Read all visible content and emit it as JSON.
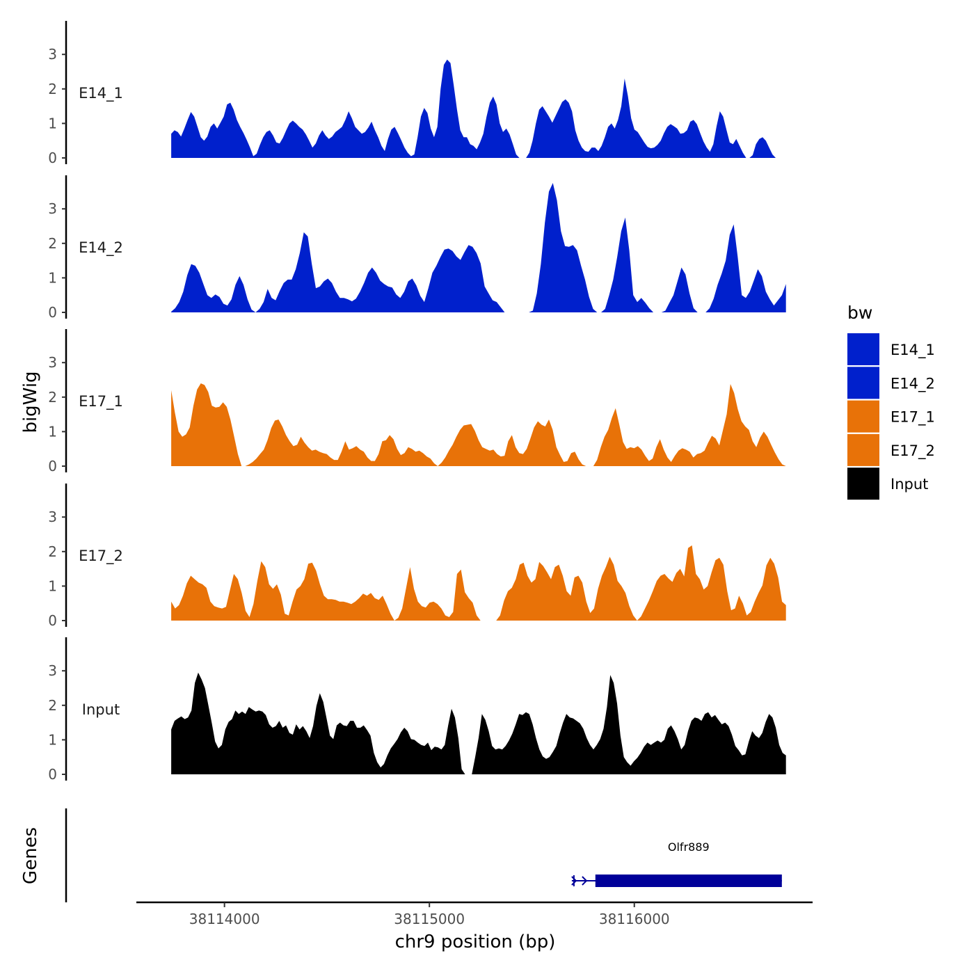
{
  "chart_data": {
    "type": "area",
    "title": "",
    "xlabel": "chr9 position (bp)",
    "ylabel": "bigWig",
    "genes_label": "Genes",
    "xlim": [
      38113570,
      38116870
    ],
    "ylim": [
      0,
      4
    ],
    "x_ticks": [
      38114000,
      38115000,
      38116000
    ],
    "x_tick_labels": [
      "38114000",
      "38115000",
      "38116000"
    ],
    "y_ticks": [
      0,
      1,
      2,
      3
    ],
    "y_tick_labels": [
      "0",
      "1",
      "2",
      "3"
    ],
    "legend": {
      "title": "bw",
      "position": "right",
      "entries": [
        {
          "label": "E14_1",
          "color": "#0020CC"
        },
        {
          "label": "E14_2",
          "color": "#0020CC"
        },
        {
          "label": "E17_1",
          "color": "#E87208"
        },
        {
          "label": "E17_2",
          "color": "#E87208"
        },
        {
          "label": "Input",
          "color": "#000000"
        }
      ]
    },
    "series": [
      {
        "name": "E14_1",
        "color": "#0020CC",
        "x_start": 38113740,
        "x_end": 38116690,
        "step": 25,
        "values": [
          0.7,
          0.8,
          0.75,
          0.62,
          0.85,
          1.1,
          1.33,
          1.2,
          0.9,
          0.6,
          0.5,
          0.62,
          0.9,
          1.0,
          0.85,
          1.02,
          1.2,
          1.55,
          1.6,
          1.4,
          1.1,
          0.9,
          0.72,
          0.52,
          0.3,
          0.05,
          0.12,
          0.38,
          0.6,
          0.75,
          0.8,
          0.65,
          0.45,
          0.42,
          0.58,
          0.8,
          1.0,
          1.08,
          1.0,
          0.9,
          0.82,
          0.68,
          0.5,
          0.3,
          0.42,
          0.65,
          0.8,
          0.65,
          0.55,
          0.62,
          0.75,
          0.82,
          0.9,
          1.1,
          1.35,
          1.15,
          0.9,
          0.8,
          0.7,
          0.75,
          0.88,
          1.05,
          0.8,
          0.6,
          0.35,
          0.2,
          0.55,
          0.82,
          0.9,
          0.72,
          0.52,
          0.3,
          0.15,
          0.05,
          0.1,
          0.6,
          1.2,
          1.45,
          1.3,
          0.85,
          0.6,
          0.9,
          2.0,
          2.7,
          2.85,
          2.75,
          2.1,
          1.4,
          0.8,
          0.6,
          0.6,
          0.4,
          0.35,
          0.25,
          0.45,
          0.7,
          1.2,
          1.6,
          1.78,
          1.55,
          1.0,
          0.75,
          0.85,
          0.68,
          0.4,
          0.1,
          0.0,
          0.0,
          0.0,
          0.15,
          0.5,
          1.0,
          1.4,
          1.5,
          1.35,
          1.2,
          1.02,
          1.22,
          1.42,
          1.62,
          1.7,
          1.6,
          1.35,
          0.8,
          0.5,
          0.3,
          0.2,
          0.18,
          0.3,
          0.3,
          0.2,
          0.35,
          0.6,
          0.9,
          1.0,
          0.85,
          1.1,
          1.5,
          2.3,
          1.8,
          1.15,
          0.82,
          0.75,
          0.6,
          0.45,
          0.32,
          0.28,
          0.3,
          0.38,
          0.5,
          0.72,
          0.9,
          0.98,
          0.92,
          0.85,
          0.7,
          0.72,
          0.8,
          1.05,
          1.1,
          0.98,
          0.72,
          0.48,
          0.3,
          0.18,
          0.4,
          0.92,
          1.35,
          1.2,
          0.82,
          0.45,
          0.4,
          0.55,
          0.35,
          0.15,
          0.0,
          0.0,
          0.08,
          0.4,
          0.55,
          0.6,
          0.5,
          0.3,
          0.1,
          0.0
        ]
      },
      {
        "name": "E14_2",
        "color": "#0020CC",
        "x_start": 38113740,
        "x_end": 38116740,
        "step": 25,
        "values": [
          0.02,
          0.12,
          0.3,
          0.6,
          1.08,
          1.4,
          1.35,
          1.15,
          0.82,
          0.5,
          0.42,
          0.52,
          0.45,
          0.25,
          0.2,
          0.38,
          0.8,
          1.05,
          0.8,
          0.38,
          0.08,
          0.0,
          0.1,
          0.3,
          0.68,
          0.42,
          0.35,
          0.62,
          0.85,
          0.95,
          0.95,
          1.25,
          1.72,
          2.32,
          2.2,
          1.4,
          0.7,
          0.75,
          0.9,
          0.98,
          0.85,
          0.6,
          0.42,
          0.42,
          0.38,
          0.32,
          0.4,
          0.6,
          0.85,
          1.15,
          1.3,
          1.15,
          0.92,
          0.82,
          0.75,
          0.72,
          0.52,
          0.42,
          0.6,
          0.9,
          0.98,
          0.78,
          0.48,
          0.3,
          0.7,
          1.15,
          1.35,
          1.6,
          1.82,
          1.85,
          1.78,
          1.62,
          1.52,
          1.75,
          1.95,
          1.9,
          1.72,
          1.42,
          0.75,
          0.55,
          0.35,
          0.3,
          0.15,
          0.0,
          0.0,
          0.0,
          0.0,
          0.0,
          0.0,
          0.0,
          0.05,
          0.55,
          1.4,
          2.6,
          3.5,
          3.75,
          3.25,
          2.35,
          1.92,
          1.9,
          1.95,
          1.8,
          1.35,
          0.95,
          0.45,
          0.1,
          0.0,
          0.0,
          0.1,
          0.5,
          0.95,
          1.6,
          2.35,
          2.75,
          1.8,
          0.5,
          0.3,
          0.42,
          0.28,
          0.12,
          0.0,
          0.0,
          0.0,
          0.05,
          0.28,
          0.5,
          0.9,
          1.3,
          1.1,
          0.55,
          0.12,
          0.0,
          0.0,
          0.0,
          0.12,
          0.4,
          0.8,
          1.12,
          1.5,
          2.25,
          2.55,
          1.6,
          0.5,
          0.42,
          0.6,
          0.92,
          1.25,
          1.05,
          0.6,
          0.38,
          0.2,
          0.35,
          0.5,
          0.82
        ]
      },
      {
        "name": "E17_1",
        "color": "#E87208",
        "x_start": 38113740,
        "x_end": 38116740,
        "step": 25,
        "values": [
          2.2,
          1.55,
          1.0,
          0.85,
          0.92,
          1.12,
          1.75,
          2.22,
          2.4,
          2.35,
          2.15,
          1.75,
          1.7,
          1.72,
          1.85,
          1.72,
          1.35,
          0.85,
          0.35,
          0.0,
          0.0,
          0.05,
          0.12,
          0.22,
          0.35,
          0.48,
          0.75,
          1.1,
          1.32,
          1.35,
          1.15,
          0.9,
          0.72,
          0.58,
          0.62,
          0.85,
          0.68,
          0.55,
          0.45,
          0.48,
          0.42,
          0.38,
          0.35,
          0.25,
          0.18,
          0.18,
          0.42,
          0.72,
          0.48,
          0.52,
          0.58,
          0.48,
          0.42,
          0.25,
          0.15,
          0.15,
          0.35,
          0.72,
          0.75,
          0.9,
          0.78,
          0.5,
          0.32,
          0.38,
          0.55,
          0.5,
          0.42,
          0.45,
          0.38,
          0.28,
          0.22,
          0.08,
          0.0,
          0.1,
          0.25,
          0.45,
          0.62,
          0.85,
          1.05,
          1.18,
          1.2,
          1.22,
          1.02,
          0.75,
          0.55,
          0.5,
          0.45,
          0.48,
          0.35,
          0.28,
          0.3,
          0.72,
          0.9,
          0.55,
          0.38,
          0.35,
          0.5,
          0.8,
          1.12,
          1.3,
          1.2,
          1.15,
          1.35,
          1.05,
          0.55,
          0.32,
          0.12,
          0.15,
          0.38,
          0.42,
          0.2,
          0.05,
          0.0,
          0.0,
          0.0,
          0.18,
          0.55,
          0.85,
          1.05,
          1.4,
          1.68,
          1.2,
          0.7,
          0.5,
          0.55,
          0.52,
          0.58,
          0.48,
          0.3,
          0.15,
          0.22,
          0.55,
          0.78,
          0.48,
          0.25,
          0.12,
          0.3,
          0.45,
          0.52,
          0.48,
          0.42,
          0.25,
          0.35,
          0.38,
          0.45,
          0.68,
          0.88,
          0.8,
          0.6,
          1.05,
          1.5,
          2.38,
          2.12,
          1.65,
          1.3,
          1.15,
          1.05,
          0.72,
          0.55,
          0.82,
          1.0,
          0.85,
          0.62,
          0.4,
          0.2,
          0.05,
          0.0
        ]
      },
      {
        "name": "E17_2",
        "color": "#E87208",
        "x_start": 38113740,
        "x_end": 38116740,
        "step": 25,
        "values": [
          0.55,
          0.35,
          0.45,
          0.72,
          1.08,
          1.3,
          1.2,
          1.1,
          1.05,
          0.95,
          0.55,
          0.42,
          0.38,
          0.35,
          0.4,
          0.88,
          1.35,
          1.2,
          0.8,
          0.28,
          0.1,
          0.48,
          1.15,
          1.72,
          1.55,
          1.05,
          0.92,
          1.05,
          0.75,
          0.2,
          0.15,
          0.55,
          0.9,
          1.0,
          1.2,
          1.65,
          1.68,
          1.45,
          1.05,
          0.72,
          0.62,
          0.62,
          0.6,
          0.55,
          0.55,
          0.52,
          0.48,
          0.55,
          0.65,
          0.78,
          0.72,
          0.8,
          0.65,
          0.6,
          0.72,
          0.48,
          0.2,
          0.0,
          0.08,
          0.35,
          0.95,
          1.55,
          0.92,
          0.55,
          0.42,
          0.38,
          0.52,
          0.55,
          0.48,
          0.35,
          0.15,
          0.1,
          0.25,
          1.35,
          1.48,
          0.82,
          0.65,
          0.52,
          0.15,
          0.0,
          0.0,
          0.0,
          0.0,
          0.0,
          0.15,
          0.58,
          0.85,
          0.95,
          1.2,
          1.62,
          1.68,
          1.3,
          1.1,
          1.2,
          1.7,
          1.58,
          1.4,
          1.2,
          1.55,
          1.62,
          1.3,
          0.85,
          0.72,
          1.25,
          1.3,
          1.1,
          0.55,
          0.22,
          0.35,
          0.92,
          1.3,
          1.55,
          1.85,
          1.62,
          1.15,
          1.0,
          0.8,
          0.42,
          0.15,
          0.0,
          0.12,
          0.35,
          0.58,
          0.85,
          1.15,
          1.3,
          1.35,
          1.22,
          1.12,
          1.38,
          1.5,
          1.28,
          2.1,
          2.18,
          1.35,
          1.2,
          0.9,
          1.0,
          1.4,
          1.75,
          1.82,
          1.62,
          0.85,
          0.3,
          0.35,
          0.72,
          0.5,
          0.15,
          0.25,
          0.55,
          0.8,
          1.02,
          1.6,
          1.82,
          1.65,
          1.25,
          0.55,
          0.45
        ]
      },
      {
        "name": "Input",
        "color": "#000000",
        "x_start": 38113740,
        "x_end": 38116740,
        "step": 25,
        "values": [
          1.3,
          1.55,
          1.62,
          1.68,
          1.6,
          1.65,
          1.85,
          2.65,
          2.95,
          2.75,
          2.5,
          2.0,
          1.5,
          0.95,
          0.75,
          0.85,
          1.3,
          1.52,
          1.6,
          1.85,
          1.75,
          1.82,
          1.75,
          1.95,
          1.88,
          1.82,
          1.85,
          1.82,
          1.72,
          1.45,
          1.35,
          1.4,
          1.55,
          1.35,
          1.42,
          1.2,
          1.15,
          1.45,
          1.3,
          1.4,
          1.25,
          1.05,
          1.4,
          1.98,
          2.35,
          2.1,
          1.62,
          1.12,
          1.02,
          1.42,
          1.5,
          1.42,
          1.4,
          1.55,
          1.55,
          1.35,
          1.35,
          1.42,
          1.28,
          1.12,
          0.62,
          0.35,
          0.2,
          0.3,
          0.55,
          0.75,
          0.88,
          1.02,
          1.22,
          1.35,
          1.25,
          1.02,
          1.0,
          0.92,
          0.85,
          0.82,
          0.92,
          0.7,
          0.8,
          0.78,
          0.72,
          0.85,
          1.42,
          1.9,
          1.65,
          1.05,
          0.15,
          0.0,
          0.0,
          0.0,
          0.5,
          1.05,
          1.75,
          1.58,
          1.25,
          0.82,
          0.72,
          0.75,
          0.72,
          0.82,
          0.98,
          1.18,
          1.45,
          1.75,
          1.72,
          1.8,
          1.75,
          1.45,
          1.05,
          0.72,
          0.52,
          0.45,
          0.5,
          0.65,
          0.82,
          1.18,
          1.5,
          1.75,
          1.65,
          1.62,
          1.55,
          1.48,
          1.32,
          1.05,
          0.85,
          0.72,
          0.85,
          1.02,
          1.32,
          1.95,
          2.88,
          2.65,
          2.05,
          1.12,
          0.5,
          0.35,
          0.25,
          0.38,
          0.48,
          0.62,
          0.8,
          0.92,
          0.85,
          0.92,
          0.98,
          0.92,
          1.0,
          1.32,
          1.42,
          1.25,
          1.02,
          0.72,
          0.85,
          1.25,
          1.55,
          1.65,
          1.62,
          1.55,
          1.75,
          1.8,
          1.65,
          1.72,
          1.58,
          1.45,
          1.5,
          1.4,
          1.15,
          0.82,
          0.7,
          0.55,
          0.58,
          0.95,
          1.25,
          1.12,
          1.05,
          1.2,
          1.52,
          1.75,
          1.65,
          1.35,
          0.85,
          0.62,
          0.55
        ]
      }
    ],
    "genes": [
      {
        "name": "Olfr889",
        "start": 38115695,
        "end": 38116720,
        "thick_start": 38115810,
        "thick_end": 38116720,
        "strand": "+",
        "color": "#000099"
      }
    ]
  }
}
